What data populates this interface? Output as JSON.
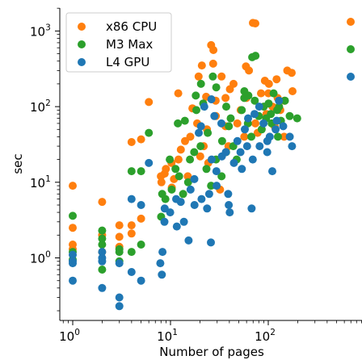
{
  "chart_data": {
    "type": "scatter",
    "xlabel": "Number of pages",
    "ylabel": "sec",
    "xscale": "log",
    "yscale": "log",
    "xlim": [
      0.78,
      800
    ],
    "ylim": [
      0.19,
      2200
    ],
    "x_ticks": [
      {
        "value": 1,
        "base": "10",
        "exp": "0"
      },
      {
        "value": 10,
        "base": "10",
        "exp": "1"
      },
      {
        "value": 100,
        "base": "10",
        "exp": "2"
      }
    ],
    "y_ticks": [
      {
        "value": 1,
        "base": "10",
        "exp": "0"
      },
      {
        "value": 10,
        "base": "10",
        "exp": "1"
      },
      {
        "value": 100,
        "base": "10",
        "exp": "2"
      },
      {
        "value": 1000,
        "base": "10",
        "exp": "3"
      }
    ],
    "legend_position": "top-left",
    "grid": false,
    "series": [
      {
        "name": "x86 CPU",
        "color": "#ff7f0e",
        "points": [
          [
            1,
            9
          ],
          [
            1,
            2.5
          ],
          [
            1,
            1.5
          ],
          [
            1,
            1.3
          ],
          [
            2,
            5.5
          ],
          [
            2,
            2.0
          ],
          [
            2,
            1.2
          ],
          [
            3,
            2.7
          ],
          [
            3,
            1.9
          ],
          [
            3,
            1.4
          ],
          [
            4,
            2.7
          ],
          [
            4,
            34
          ],
          [
            4,
            2.1
          ],
          [
            5,
            37
          ],
          [
            5,
            3.3
          ],
          [
            6,
            115
          ],
          [
            8,
            10
          ],
          [
            8,
            12
          ],
          [
            9,
            15
          ],
          [
            9,
            13
          ],
          [
            10,
            18
          ],
          [
            10,
            8.5
          ],
          [
            11,
            11
          ],
          [
            12,
            150
          ],
          [
            12,
            20
          ],
          [
            13,
            27
          ],
          [
            14,
            35
          ],
          [
            15,
            12
          ],
          [
            16,
            40
          ],
          [
            17,
            95
          ],
          [
            18,
            60
          ],
          [
            19,
            250
          ],
          [
            20,
            22
          ],
          [
            21,
            350
          ],
          [
            22,
            30
          ],
          [
            23,
            50
          ],
          [
            24,
            135
          ],
          [
            25,
            18
          ],
          [
            26,
            650
          ],
          [
            27,
            560
          ],
          [
            28,
            370
          ],
          [
            29,
            75
          ],
          [
            30,
            120
          ],
          [
            32,
            8
          ],
          [
            34,
            250
          ],
          [
            36,
            55
          ],
          [
            38,
            130
          ],
          [
            40,
            30
          ],
          [
            42,
            170
          ],
          [
            45,
            200
          ],
          [
            48,
            60
          ],
          [
            52,
            90
          ],
          [
            55,
            40
          ],
          [
            60,
            340
          ],
          [
            62,
            130
          ],
          [
            65,
            300
          ],
          [
            70,
            1280
          ],
          [
            72,
            1260
          ],
          [
            75,
            60
          ],
          [
            80,
            45
          ],
          [
            85,
            150
          ],
          [
            90,
            220
          ],
          [
            95,
            80
          ],
          [
            100,
            150
          ],
          [
            105,
            200
          ],
          [
            110,
            100
          ],
          [
            115,
            55
          ],
          [
            120,
            130
          ],
          [
            125,
            230
          ],
          [
            130,
            90
          ],
          [
            140,
            40
          ],
          [
            150,
            120
          ],
          [
            160,
            300
          ],
          [
            170,
            280
          ],
          [
            180,
            160
          ]
        ]
      },
      {
        "name": "M3 Max",
        "color": "#2ca02c",
        "points": [
          [
            1,
            3.6
          ],
          [
            1,
            1.2
          ],
          [
            1,
            0.95
          ],
          [
            2,
            2.3
          ],
          [
            2,
            1.8
          ],
          [
            2,
            1.5
          ],
          [
            2,
            0.7
          ],
          [
            3,
            1.3
          ],
          [
            3,
            1.2
          ],
          [
            3,
            0.9
          ],
          [
            4,
            1.2
          ],
          [
            4,
            14
          ],
          [
            5,
            1.5
          ],
          [
            5,
            14
          ],
          [
            6,
            45
          ],
          [
            8,
            3.5
          ],
          [
            8,
            7
          ],
          [
            9,
            6
          ],
          [
            10,
            8
          ],
          [
            10,
            20
          ],
          [
            11,
            15
          ],
          [
            12,
            60
          ],
          [
            12,
            12
          ],
          [
            13,
            7
          ],
          [
            14,
            65
          ],
          [
            15,
            10
          ],
          [
            16,
            20
          ],
          [
            17,
            25
          ],
          [
            18,
            140
          ],
          [
            19,
            90
          ],
          [
            20,
            30
          ],
          [
            21,
            200
          ],
          [
            22,
            110
          ],
          [
            23,
            15
          ],
          [
            25,
            45
          ],
          [
            26,
            9
          ],
          [
            28,
            250
          ],
          [
            29,
            20
          ],
          [
            30,
            180
          ],
          [
            32,
            12
          ],
          [
            34,
            35
          ],
          [
            36,
            100
          ],
          [
            38,
            25
          ],
          [
            40,
            55
          ],
          [
            42,
            70
          ],
          [
            45,
            30
          ],
          [
            48,
            20
          ],
          [
            52,
            90
          ],
          [
            55,
            130
          ],
          [
            58,
            160
          ],
          [
            60,
            60
          ],
          [
            62,
            140
          ],
          [
            65,
            40
          ],
          [
            70,
            450
          ],
          [
            72,
            470
          ],
          [
            75,
            120
          ],
          [
            80,
            75
          ],
          [
            85,
            50
          ],
          [
            90,
            100
          ],
          [
            95,
            70
          ],
          [
            100,
            110
          ],
          [
            105,
            80
          ],
          [
            110,
            60
          ],
          [
            115,
            150
          ],
          [
            120,
            90
          ],
          [
            125,
            100
          ],
          [
            130,
            40
          ],
          [
            140,
            65
          ],
          [
            150,
            120
          ],
          [
            170,
            75
          ],
          [
            190,
            70
          ]
        ]
      },
      {
        "name": "L4 GPU",
        "color": "#1f77b4",
        "points": [
          [
            1,
            1.1
          ],
          [
            1,
            0.9
          ],
          [
            1,
            0.85
          ],
          [
            1,
            0.5
          ],
          [
            2,
            1.2
          ],
          [
            2,
            1.0
          ],
          [
            2,
            0.9
          ],
          [
            2,
            0.4
          ],
          [
            3,
            0.85
          ],
          [
            3,
            0.3
          ],
          [
            3,
            0.23
          ],
          [
            4,
            0.65
          ],
          [
            4,
            6
          ],
          [
            5,
            0.5
          ],
          [
            5,
            5
          ],
          [
            6,
            18
          ],
          [
            8,
            1.2
          ],
          [
            8,
            0.85
          ],
          [
            8,
            0.6
          ],
          [
            9,
            3
          ],
          [
            9,
            4.5
          ],
          [
            10,
            4
          ],
          [
            11,
            6
          ],
          [
            12,
            2.6
          ],
          [
            13,
            5.5
          ],
          [
            14,
            3
          ],
          [
            15,
            1.7
          ],
          [
            16,
            8
          ],
          [
            17,
            5
          ],
          [
            18,
            11
          ],
          [
            19,
            45
          ],
          [
            20,
            6
          ],
          [
            21,
            55
          ],
          [
            22,
            100
          ],
          [
            23,
            4.5
          ],
          [
            24,
            7
          ],
          [
            25,
            1.6
          ],
          [
            26,
            125
          ],
          [
            27,
            20
          ],
          [
            28,
            75
          ],
          [
            29,
            14
          ],
          [
            30,
            9
          ],
          [
            32,
            60
          ],
          [
            34,
            22
          ],
          [
            36,
            25
          ],
          [
            38,
            7
          ],
          [
            40,
            5
          ],
          [
            42,
            4
          ],
          [
            45,
            18
          ],
          [
            48,
            35
          ],
          [
            52,
            25
          ],
          [
            55,
            15
          ],
          [
            58,
            50
          ],
          [
            60,
            30
          ],
          [
            62,
            70
          ],
          [
            65,
            4.5
          ],
          [
            70,
            20
          ],
          [
            75,
            80
          ],
          [
            80,
            100
          ],
          [
            85,
            30
          ],
          [
            90,
            60
          ],
          [
            95,
            25
          ],
          [
            100,
            35
          ],
          [
            105,
            40
          ],
          [
            110,
            14
          ],
          [
            115,
            50
          ],
          [
            120,
            65
          ],
          [
            125,
            120
          ],
          [
            140,
            55
          ],
          [
            160,
            40
          ],
          [
            180,
            30
          ]
        ]
      }
    ]
  }
}
